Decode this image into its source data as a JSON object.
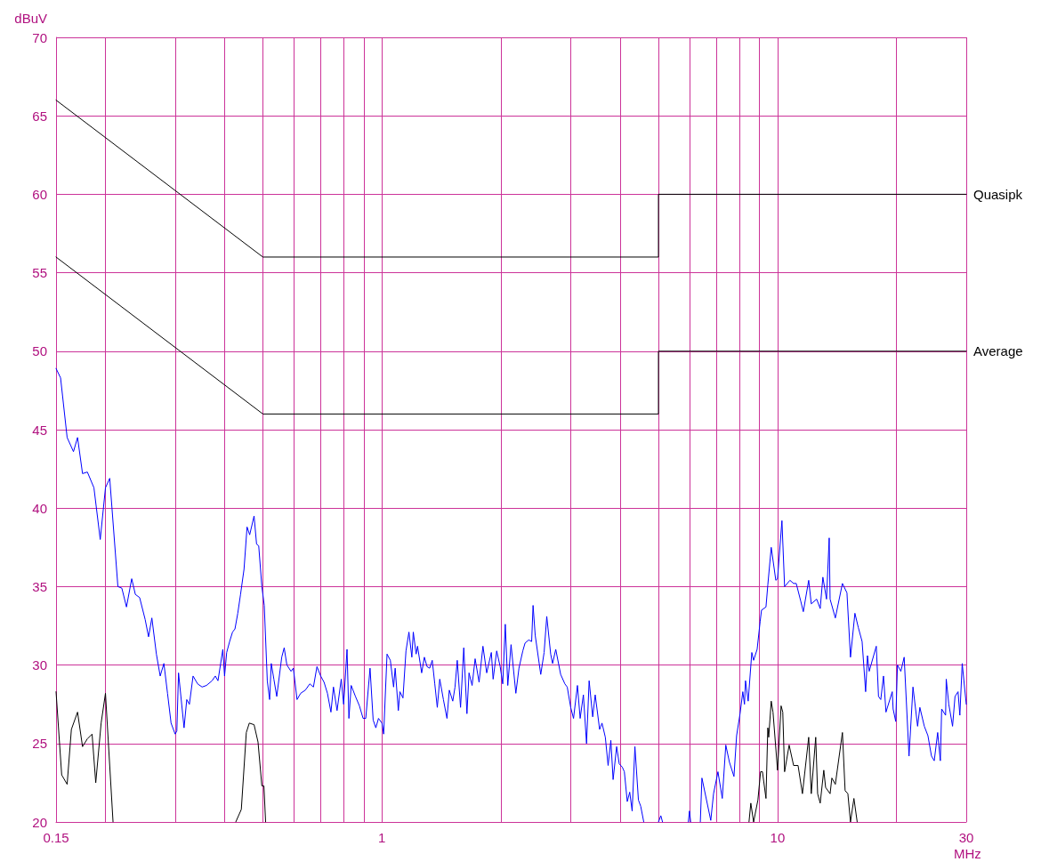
{
  "chart_data": {
    "type": "line",
    "xlabel": "MHz",
    "ylabel": "dBuV",
    "log": "x",
    "grid": true,
    "line_style": "solid",
    "xlim": [
      0.15,
      30
    ],
    "ylim": [
      20,
      70
    ],
    "xticks": [
      0.15,
      {
        "value": 0.2,
        "label": null
      },
      {
        "value": 0.3,
        "label": null
      },
      {
        "value": 0.4,
        "label": null
      },
      {
        "value": 0.5,
        "label": null
      },
      {
        "value": 0.6,
        "label": null
      },
      {
        "value": 0.7,
        "label": null
      },
      {
        "value": 0.8,
        "label": null
      },
      {
        "value": 0.9,
        "label": null
      },
      1,
      {
        "value": 2,
        "label": null
      },
      {
        "value": 3,
        "label": null
      },
      {
        "value": 4,
        "label": null
      },
      {
        "value": 5,
        "label": null
      },
      {
        "value": 6,
        "label": null
      },
      {
        "value": 7,
        "label": null
      },
      {
        "value": 8,
        "label": null
      },
      {
        "value": 9,
        "label": null
      },
      10,
      {
        "value": 20,
        "label": null
      },
      30
    ],
    "yticks": [
      20,
      25,
      30,
      35,
      40,
      45,
      50,
      55,
      60,
      65,
      70
    ],
    "series": [
      {
        "name": "Quasipk",
        "color": "#000000",
        "x": [
          0.15,
          0.5,
          5,
          5,
          30
        ],
        "values": [
          66,
          56,
          56,
          60,
          60
        ]
      },
      {
        "name": "Average",
        "color": "#000000",
        "x": [
          0.15,
          0.5,
          5,
          5,
          30
        ],
        "values": [
          56,
          46,
          46,
          50,
          50
        ]
      },
      {
        "color": "#0000ff",
        "x": [
          0.15,
          0.154,
          0.16,
          0.166,
          0.17,
          0.175,
          0.18,
          0.187,
          0.194,
          0.2,
          0.205,
          0.215,
          0.22,
          0.226,
          0.233,
          0.238,
          0.244,
          0.252,
          0.257,
          0.262,
          0.269,
          0.275,
          0.281,
          0.287,
          0.293,
          0.3,
          0.303,
          0.306,
          0.316,
          0.321,
          0.326,
          0.333,
          0.342,
          0.351,
          0.36,
          0.372,
          0.379,
          0.385,
          0.396,
          0.4,
          0.405,
          0.412,
          0.419,
          0.425,
          0.432,
          0.439,
          0.448,
          0.456,
          0.463,
          0.475,
          0.482,
          0.488,
          0.497,
          0.504,
          0.513,
          0.52,
          0.525,
          0.533,
          0.542,
          0.558,
          0.566,
          0.575,
          0.589,
          0.597,
          0.61,
          0.623,
          0.64,
          0.657,
          0.671,
          0.685,
          0.7,
          0.714,
          0.728,
          0.743,
          0.754,
          0.77,
          0.789,
          0.8,
          0.816,
          0.825,
          0.836,
          0.857,
          0.877,
          0.896,
          0.91,
          0.933,
          0.95,
          0.965,
          0.98,
          1.0,
          1.01,
          1.03,
          1.05,
          1.07,
          1.08,
          1.1,
          1.11,
          1.13,
          1.15,
          1.17,
          1.19,
          1.2,
          1.22,
          1.23,
          1.26,
          1.28,
          1.3,
          1.32,
          1.34,
          1.36,
          1.38,
          1.4,
          1.43,
          1.46,
          1.48,
          1.51,
          1.53,
          1.55,
          1.58,
          1.61,
          1.64,
          1.66,
          1.69,
          1.72,
          1.76,
          1.8,
          1.84,
          1.89,
          1.91,
          1.95,
          1.99,
          2.02,
          2.05,
          2.08,
          2.12,
          2.18,
          2.22,
          2.27,
          2.3,
          2.35,
          2.39,
          2.41,
          2.44,
          2.52,
          2.57,
          2.61,
          2.67,
          2.7,
          2.75,
          2.83,
          2.9,
          2.94,
          3.0,
          3.05,
          3.12,
          3.17,
          3.23,
          3.29,
          3.34,
          3.41,
          3.46,
          3.55,
          3.6,
          3.67,
          3.73,
          3.79,
          3.84,
          3.92,
          3.98,
          4.05,
          4.1,
          4.17,
          4.23,
          4.29,
          4.36,
          4.45,
          4.51,
          4.59,
          4.7,
          5.0,
          5.07,
          5.12,
          5.5,
          5.95,
          5.99,
          6.03,
          6.2,
          6.38,
          6.44,
          6.78,
          6.89,
          7.07,
          7.25,
          7.4,
          7.56,
          7.76,
          7.88,
          8.04,
          8.17,
          8.25,
          8.3,
          8.43,
          8.61,
          8.7,
          8.88,
          9.04,
          9.11,
          9.35,
          9.45,
          9.64,
          9.9,
          10.0,
          10.26,
          10.42,
          10.75,
          10.98,
          11.15,
          11.44,
          11.62,
          11.99,
          12.17,
          12.56,
          12.82,
          13.02,
          13.3,
          13.51,
          13.58,
          14.0,
          14.59,
          14.98,
          15.29,
          15.69,
          16.0,
          16.36,
          16.7,
          16.88,
          17.05,
          17.77,
          18.0,
          18.24,
          18.53,
          18.8,
          19.5,
          19.6,
          19.9,
          20.1,
          20.5,
          20.9,
          21.5,
          22.0,
          22.6,
          22.9,
          23.5,
          24.0,
          24.5,
          24.9,
          25.4,
          25.8,
          26.0,
          26.6,
          26.7,
          27.1,
          27.7,
          28.1,
          28.6,
          28.9,
          29.3,
          30
        ],
        "values": [
          48.9,
          48.3,
          44.5,
          43.6,
          44.5,
          42.2,
          42.3,
          41.3,
          38.0,
          41.3,
          41.9,
          35.0,
          34.9,
          33.7,
          35.5,
          34.5,
          34.3,
          32.9,
          31.8,
          33.0,
          30.7,
          29.3,
          30.1,
          28.2,
          26.3,
          25.6,
          25.8,
          29.5,
          26.0,
          27.8,
          27.5,
          29.3,
          28.8,
          28.6,
          28.7,
          29.0,
          29.3,
          29.0,
          31.0,
          29.3,
          30.8,
          31.5,
          32.1,
          32.3,
          33.3,
          34.5,
          36.1,
          38.8,
          38.3,
          39.5,
          37.7,
          37.6,
          35.0,
          33.8,
          29.0,
          27.8,
          30.1,
          29.1,
          28.0,
          30.5,
          31.1,
          30.0,
          29.6,
          29.8,
          27.8,
          28.2,
          28.4,
          28.8,
          28.6,
          29.9,
          29.3,
          28.9,
          28.2,
          27.0,
          28.6,
          27.1,
          29.1,
          27.5,
          31.0,
          26.6,
          28.7,
          28.0,
          27.4,
          26.6,
          26.6,
          29.8,
          26.5,
          26.0,
          26.6,
          26.3,
          25.6,
          30.7,
          30.3,
          28.6,
          29.8,
          27.1,
          28.3,
          27.9,
          30.9,
          32.1,
          30.5,
          32.1,
          30.7,
          31.2,
          29.5,
          30.5,
          29.9,
          29.8,
          30.3,
          28.8,
          27.3,
          29.1,
          27.8,
          26.6,
          28.4,
          27.7,
          28.6,
          30.3,
          27.3,
          31.1,
          26.9,
          29.5,
          28.7,
          30.4,
          28.9,
          31.2,
          29.5,
          30.8,
          29.1,
          30.9,
          29.9,
          28.8,
          32.6,
          28.7,
          31.3,
          28.2,
          29.8,
          30.9,
          31.4,
          31.6,
          31.5,
          33.8,
          31.9,
          29.4,
          30.8,
          33.1,
          30.7,
          30.1,
          31.0,
          29.4,
          28.8,
          28.6,
          27.3,
          26.6,
          28.7,
          26.6,
          28.1,
          25.0,
          29.0,
          26.7,
          28.1,
          25.9,
          26.3,
          25.4,
          23.6,
          25.2,
          22.7,
          24.8,
          23.7,
          23.5,
          23.2,
          21.3,
          21.9,
          20.7,
          24.8,
          21.4,
          21.0,
          20.0,
          null,
          20.0,
          20.4,
          20.0,
          null,
          20.0,
          20.7,
          20.0,
          null,
          20.0,
          22.8,
          20.1,
          21.8,
          23.2,
          21.5,
          24.9,
          23.8,
          22.9,
          25.5,
          26.9,
          28.3,
          27.5,
          29.0,
          27.7,
          30.8,
          30.3,
          31.0,
          32.8,
          33.5,
          33.7,
          35.1,
          37.5,
          35.4,
          35.5,
          39.2,
          35.0,
          35.4,
          35.2,
          35.2,
          34.1,
          33.4,
          35.4,
          33.9,
          34.2,
          33.6,
          35.6,
          34.2,
          38.1,
          34.2,
          33.0,
          35.2,
          34.6,
          30.5,
          33.3,
          32.4,
          31.5,
          28.3,
          30.6,
          29.6,
          31.2,
          28.0,
          27.8,
          29.3,
          27.0,
          28.3,
          27.2,
          26.4,
          30.0,
          29.6,
          30.5,
          24.2,
          28.6,
          26.1,
          27.3,
          26.1,
          25.5,
          24.2,
          23.9,
          25.7,
          23.9,
          27.2,
          26.8,
          29.1,
          27.5,
          26.1,
          28.0,
          28.3,
          26.8,
          30.1,
          27.5
        ]
      },
      {
        "color": "#000000",
        "x": [
          0.15,
          0.155,
          0.16,
          0.164,
          0.17,
          0.175,
          0.18,
          0.185,
          0.189,
          0.195,
          0.2,
          0.209,
          0.3,
          0.427,
          0.441,
          0.454,
          0.462,
          0.475,
          0.486,
          0.497,
          0.503,
          0.508,
          0.6,
          8.47,
          8.56,
          8.7,
          8.92,
          9.06,
          9.16,
          9.35,
          9.45,
          9.5,
          9.64,
          9.74,
          10.0,
          10.21,
          10.31,
          10.42,
          10.7,
          10.98,
          11.27,
          11.56,
          11.99,
          12.17,
          12.49,
          12.63,
          12.82,
          13.09,
          13.23,
          13.58,
          13.72,
          14.0,
          14.59,
          14.82,
          15.06,
          15.29,
          15.6,
          15.9
        ],
        "values": [
          28.3,
          23.0,
          22.4,
          25.9,
          27.0,
          24.8,
          25.3,
          25.6,
          22.5,
          26.3,
          28.2,
          20.0,
          null,
          20.0,
          20.8,
          25.7,
          26.3,
          26.2,
          25.1,
          22.3,
          22.3,
          20.0,
          null,
          20.0,
          21.2,
          20.0,
          21.4,
          23.2,
          23.2,
          21.5,
          26.0,
          25.4,
          27.7,
          27.0,
          23.3,
          27.4,
          27.0,
          23.2,
          24.9,
          23.6,
          23.6,
          21.8,
          25.4,
          21.8,
          25.4,
          21.8,
          21.2,
          23.3,
          22.2,
          21.8,
          22.8,
          22.4,
          25.7,
          22.0,
          21.8,
          20.0,
          21.5,
          20.0
        ]
      }
    ]
  }
}
